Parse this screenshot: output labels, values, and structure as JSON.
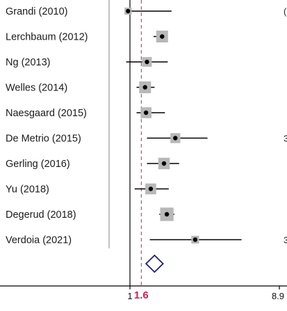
{
  "chart_data": {
    "type": "forest",
    "title": "",
    "xlabel": "",
    "ylabel": "",
    "x_scale": "linear",
    "xlim": [
      1,
      8.9
    ],
    "x_ticks": [
      {
        "value": 1,
        "label": "1"
      },
      {
        "value": 8.9,
        "label": "8.9"
      }
    ],
    "reference_line": {
      "value": 1.6,
      "label": "1.6",
      "color": "#cc2255"
    },
    "null_line": 1,
    "studies": [
      {
        "label": "Grandi  (2010)",
        "estimate": 0.9,
        "ci_low": 0.75,
        "ci_high": 3.2,
        "weight": 0.25
      },
      {
        "label": "Lerchbaum  (2012)",
        "estimate": 2.7,
        "ci_low": 2.25,
        "ci_high": 3.0,
        "weight": 1.0
      },
      {
        "label": "Ng (2013)",
        "estimate": 1.9,
        "ci_low": 0.8,
        "ci_high": 3.0,
        "weight": 0.65
      },
      {
        "label": "Welles (2014)",
        "estimate": 1.8,
        "ci_low": 1.35,
        "ci_high": 2.3,
        "weight": 1.0
      },
      {
        "label": "Naesgaard  (2015)",
        "estimate": 1.85,
        "ci_low": 1.35,
        "ci_high": 2.85,
        "weight": 0.85
      },
      {
        "label": "De Metrio (2015)",
        "estimate": 3.4,
        "ci_low": 1.9,
        "ci_high": 5.1,
        "weight": 0.7
      },
      {
        "label": "Gerling (2016)",
        "estimate": 2.8,
        "ci_low": 1.9,
        "ci_high": 3.6,
        "weight": 0.95
      },
      {
        "label": "Yu  (2018)",
        "estimate": 2.1,
        "ci_low": 1.25,
        "ci_high": 3.05,
        "weight": 0.85
      },
      {
        "label": "Degerud (2018)",
        "estimate": 2.95,
        "ci_low": 2.55,
        "ci_high": 3.35,
        "weight": 1.25
      },
      {
        "label": "Verdoia  (2021)",
        "estimate": 4.45,
        "ci_low": 2.05,
        "ci_high": 6.9,
        "weight": 0.35
      }
    ],
    "pooled": {
      "estimate": 2.3,
      "ci_low": 1.85,
      "ci_high": 2.75
    },
    "right_edge_marks": [
      {
        "row": 0,
        "text": "("
      },
      {
        "row": 5,
        "text": "3"
      },
      {
        "row": 9,
        "text": "3"
      }
    ],
    "colors": {
      "ci_line": "#000000",
      "weight_box": "#b8b8b8",
      "point": "#000000",
      "diamond": "#1f1f6e",
      "axis": "#000000",
      "separator": "#9a9a9a"
    }
  }
}
